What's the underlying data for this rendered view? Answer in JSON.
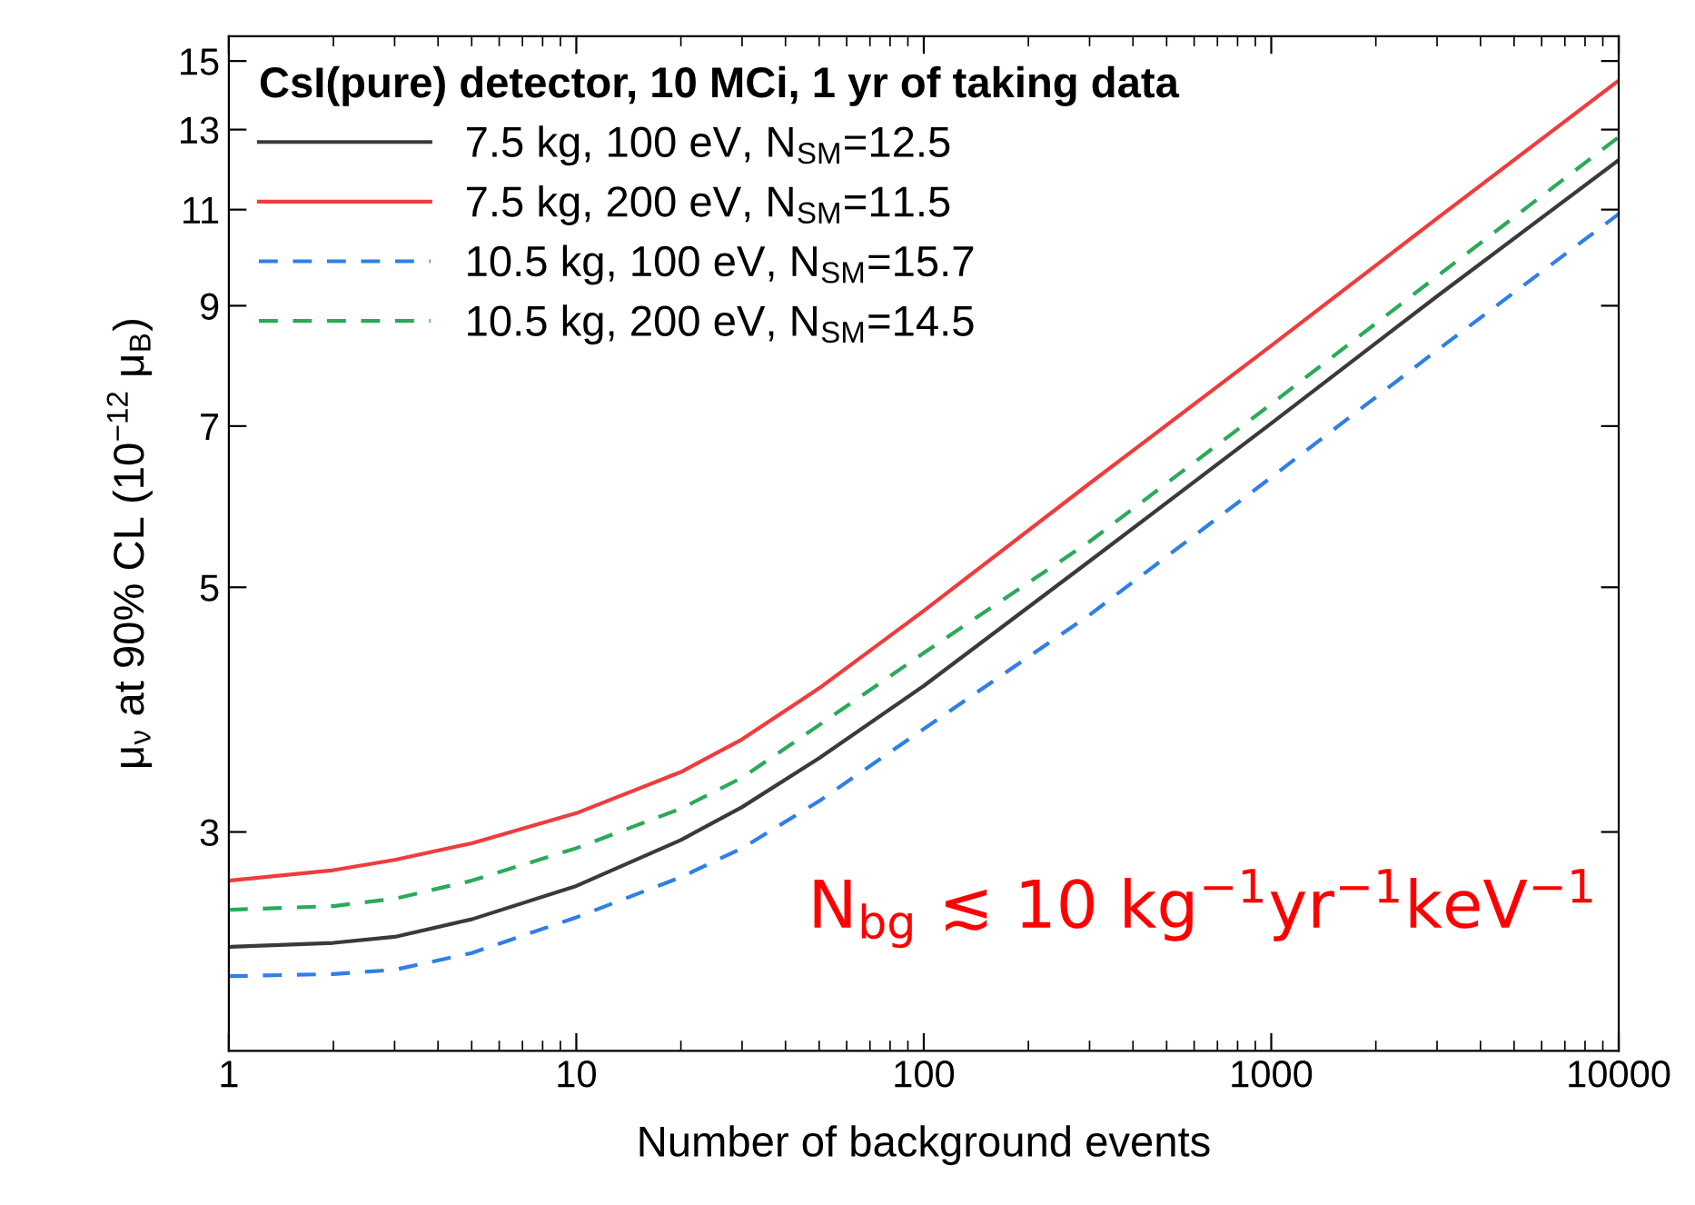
{
  "chart_data": {
    "type": "line",
    "xlabel": "Number of background events",
    "ylabel": "μ$_{ν}$ at 90% CL (10$^{−12}$ μ$_{B}$)",
    "legend_title": "CsI(pure) detector, 10 MCi, 1 yr of taking data",
    "x": [
      1,
      2,
      3,
      5,
      10,
      20,
      30,
      50,
      100,
      300,
      1000,
      3000,
      10000
    ],
    "series": [
      {
        "name": "7.5 kg, 100 eV, N$_{SM}$=12.5",
        "color": "#3a3a3a",
        "line_style": "solid",
        "values": [
          2.36,
          2.38,
          2.41,
          2.5,
          2.68,
          2.95,
          3.16,
          3.5,
          4.07,
          5.28,
          7.04,
          9.18,
          12.2
        ]
      },
      {
        "name": "7.5 kg, 200 eV, N$_{SM}$=11.5",
        "color": "#f03c3c",
        "line_style": "solid",
        "values": [
          2.71,
          2.77,
          2.83,
          2.93,
          3.12,
          3.4,
          3.64,
          4.05,
          4.76,
          6.21,
          8.28,
          10.8,
          14.4
        ]
      },
      {
        "name": "10.5 kg, 100 eV, N$_{SM}$=15.7",
        "color": "#2f7fe6",
        "line_style": "dashed",
        "values": [
          2.22,
          2.23,
          2.25,
          2.33,
          2.51,
          2.73,
          2.9,
          3.2,
          3.72,
          4.72,
          6.29,
          8.2,
          10.9
        ]
      },
      {
        "name": "10.5 kg, 200 eV, N$_{SM}$=14.5",
        "color": "#2aaa5a",
        "line_style": "dashed",
        "values": [
          2.55,
          2.57,
          2.61,
          2.71,
          2.9,
          3.15,
          3.36,
          3.75,
          4.36,
          5.5,
          7.33,
          9.57,
          12.8
        ]
      }
    ],
    "log": "xy",
    "xlim": [
      1,
      10000
    ],
    "ylim": [
      1.9,
      15.8
    ],
    "xticks": [
      1,
      10,
      100,
      1000,
      10000
    ],
    "yticks": [
      3,
      5,
      7,
      9,
      11,
      13,
      15
    ],
    "grid": false,
    "legend": "top left",
    "marker": "none",
    "annotations": [
      "N$_{bg}$ ≲ 10 kg$^{−1}$yr$^{−1}$keV$^{−1}$"
    ]
  }
}
